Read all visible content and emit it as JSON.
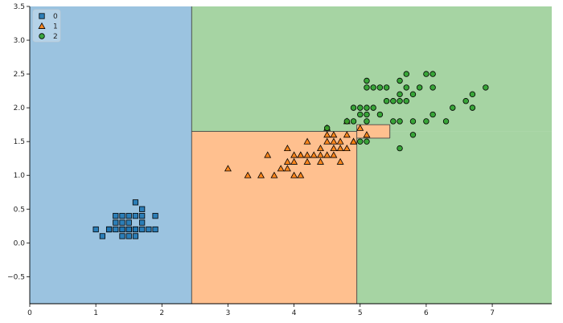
{
  "chart_data": {
    "type": "scatter",
    "title": "",
    "xlabel": "",
    "ylabel": "",
    "xlim": [
      0,
      7.9
    ],
    "ylim": [
      -0.9,
      3.5
    ],
    "xticks": [
      0,
      1,
      2,
      3,
      4,
      5,
      6,
      7
    ],
    "yticks": [
      -0.5,
      0.0,
      0.5,
      1.0,
      1.5,
      2.0,
      2.5,
      3.0,
      3.5
    ],
    "xtick_labels": [
      "0",
      "1",
      "2",
      "3",
      "4",
      "5",
      "6",
      "7"
    ],
    "ytick_labels": [
      "−0.5",
      "0.0",
      "0.5",
      "1.0",
      "1.5",
      "2.0",
      "2.5",
      "3.0",
      "3.5"
    ],
    "legend_position": "top-left",
    "decision_regions": [
      {
        "class": "0",
        "color": "#9bc3e0",
        "x": [
          0,
          2.45
        ],
        "y": [
          -0.9,
          3.5
        ]
      },
      {
        "class": "1",
        "color": "#ffc08f",
        "x": [
          2.45,
          4.95
        ],
        "y": [
          -0.9,
          1.65
        ]
      },
      {
        "class": "2",
        "color": "#a6d4a3",
        "x": [
          2.45,
          7.9
        ],
        "y": [
          1.65,
          3.5
        ]
      },
      {
        "class": "2",
        "color": "#a6d4a3",
        "x": [
          4.95,
          7.9
        ],
        "y": [
          -0.9,
          1.65
        ]
      },
      {
        "class": "1",
        "color": "#ffc08f",
        "x": [
          4.95,
          5.45
        ],
        "y": [
          1.55,
          1.75
        ]
      }
    ],
    "series": [
      {
        "name": "0",
        "marker": "square",
        "color": "#1f77b4",
        "points": [
          [
            1.0,
            0.2
          ],
          [
            1.1,
            0.1
          ],
          [
            1.2,
            0.2
          ],
          [
            1.3,
            0.2
          ],
          [
            1.3,
            0.3
          ],
          [
            1.3,
            0.4
          ],
          [
            1.4,
            0.1
          ],
          [
            1.4,
            0.2
          ],
          [
            1.4,
            0.3
          ],
          [
            1.4,
            0.2
          ],
          [
            1.5,
            0.1
          ],
          [
            1.5,
            0.2
          ],
          [
            1.5,
            0.4
          ],
          [
            1.5,
            0.2
          ],
          [
            1.6,
            0.2
          ],
          [
            1.6,
            0.4
          ],
          [
            1.6,
            0.6
          ],
          [
            1.6,
            0.2
          ],
          [
            1.7,
            0.3
          ],
          [
            1.7,
            0.5
          ],
          [
            1.7,
            0.4
          ],
          [
            1.7,
            0.2
          ],
          [
            1.9,
            0.2
          ],
          [
            1.9,
            0.4
          ],
          [
            1.5,
            0.3
          ],
          [
            1.2,
            0.2
          ],
          [
            1.4,
            0.4
          ],
          [
            1.6,
            0.1
          ],
          [
            1.8,
            0.2
          ]
        ]
      },
      {
        "name": "1",
        "marker": "triangle",
        "color": "#ff7f0e",
        "points": [
          [
            3.0,
            1.1
          ],
          [
            3.3,
            1.0
          ],
          [
            3.5,
            1.0
          ],
          [
            3.6,
            1.3
          ],
          [
            3.7,
            1.0
          ],
          [
            3.8,
            1.1
          ],
          [
            3.9,
            1.1
          ],
          [
            3.9,
            1.2
          ],
          [
            3.9,
            1.4
          ],
          [
            4.0,
            1.0
          ],
          [
            4.0,
            1.2
          ],
          [
            4.0,
            1.3
          ],
          [
            4.1,
            1.0
          ],
          [
            4.1,
            1.3
          ],
          [
            4.2,
            1.2
          ],
          [
            4.2,
            1.3
          ],
          [
            4.2,
            1.5
          ],
          [
            4.3,
            1.3
          ],
          [
            4.4,
            1.2
          ],
          [
            4.4,
            1.3
          ],
          [
            4.4,
            1.4
          ],
          [
            4.5,
            1.3
          ],
          [
            4.5,
            1.5
          ],
          [
            4.6,
            1.3
          ],
          [
            4.6,
            1.4
          ],
          [
            4.6,
            1.5
          ],
          [
            4.7,
            1.2
          ],
          [
            4.7,
            1.4
          ],
          [
            4.7,
            1.5
          ],
          [
            4.8,
            1.4
          ],
          [
            4.8,
            1.8
          ],
          [
            4.9,
            1.5
          ],
          [
            5.0,
            1.7
          ],
          [
            5.1,
            1.6
          ],
          [
            4.5,
            1.7
          ],
          [
            4.8,
            1.6
          ],
          [
            4.5,
            1.6
          ],
          [
            4.1,
            1.3
          ],
          [
            4.9,
            1.5
          ],
          [
            4.6,
            1.6
          ]
        ]
      },
      {
        "name": "2",
        "marker": "circle",
        "color": "#2ca02c",
        "points": [
          [
            4.5,
            1.7
          ],
          [
            4.8,
            1.8
          ],
          [
            4.9,
            1.8
          ],
          [
            4.9,
            2.0
          ],
          [
            5.0,
            1.5
          ],
          [
            5.0,
            2.0
          ],
          [
            5.0,
            1.9
          ],
          [
            5.1,
            1.5
          ],
          [
            5.1,
            1.8
          ],
          [
            5.1,
            1.9
          ],
          [
            5.1,
            2.0
          ],
          [
            5.1,
            2.3
          ],
          [
            5.1,
            2.4
          ],
          [
            5.2,
            2.0
          ],
          [
            5.2,
            2.3
          ],
          [
            5.3,
            1.9
          ],
          [
            5.3,
            2.3
          ],
          [
            5.4,
            2.1
          ],
          [
            5.4,
            2.3
          ],
          [
            5.5,
            1.8
          ],
          [
            5.5,
            2.1
          ],
          [
            5.6,
            1.4
          ],
          [
            5.6,
            1.8
          ],
          [
            5.6,
            2.1
          ],
          [
            5.6,
            2.2
          ],
          [
            5.6,
            2.4
          ],
          [
            5.7,
            2.1
          ],
          [
            5.7,
            2.3
          ],
          [
            5.7,
            2.5
          ],
          [
            5.8,
            1.6
          ],
          [
            5.8,
            1.8
          ],
          [
            5.8,
            2.2
          ],
          [
            5.9,
            2.3
          ],
          [
            6.0,
            1.8
          ],
          [
            6.0,
            2.5
          ],
          [
            6.1,
            1.9
          ],
          [
            6.1,
            2.3
          ],
          [
            6.1,
            2.5
          ],
          [
            6.3,
            1.8
          ],
          [
            6.4,
            2.0
          ],
          [
            6.6,
            2.1
          ],
          [
            6.7,
            2.0
          ],
          [
            6.7,
            2.2
          ],
          [
            6.9,
            2.3
          ]
        ]
      }
    ]
  }
}
